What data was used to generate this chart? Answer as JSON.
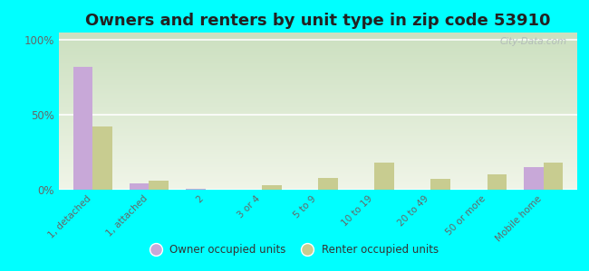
{
  "title": "Owners and renters by unit type in zip code 53910",
  "categories": [
    "1, detached",
    "1, attached",
    "2",
    "3 or 4",
    "5 to 9",
    "10 to 19",
    "20 to 49",
    "50 or more",
    "Mobile home"
  ],
  "owner_values": [
    82,
    4,
    0.5,
    0,
    0,
    0,
    0,
    0,
    15
  ],
  "renter_values": [
    42,
    6,
    0,
    3,
    8,
    18,
    7,
    10,
    18
  ],
  "owner_color": "#c8a8d8",
  "renter_color": "#c8cc90",
  "background_color": "#00ffff",
  "plot_bg_top": "#cce0c0",
  "plot_bg_bottom": "#f0f5e8",
  "title_fontsize": 13,
  "ylabel_ticks": [
    0,
    50,
    100
  ],
  "ylabel_labels": [
    "0%",
    "50%",
    "100%"
  ],
  "ylim": [
    0,
    105
  ],
  "bar_width": 0.35,
  "watermark": "City-Data.com",
  "legend_owner": "Owner occupied units",
  "legend_renter": "Renter occupied units"
}
